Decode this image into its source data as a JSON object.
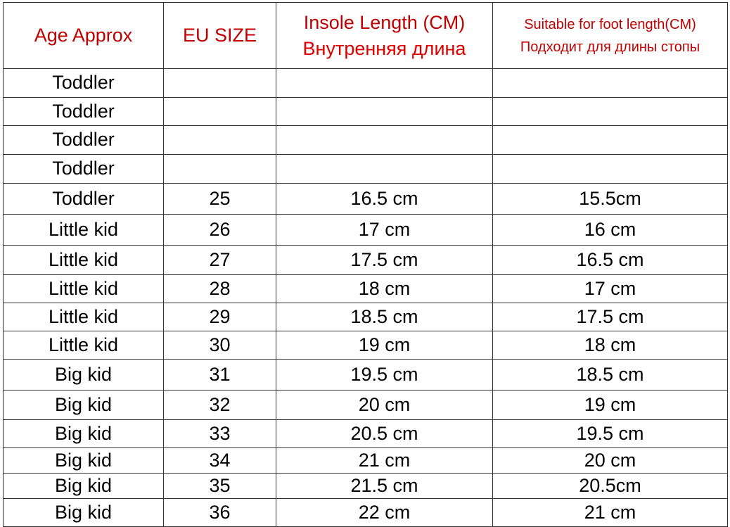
{
  "header": {
    "age": "Age Approx",
    "eu_size": "EU SIZE",
    "insole_en": "Insole Length (CM)",
    "insole_ru": "Внутренняя длина",
    "foot_en": "Suitable for foot length(CM)",
    "foot_ru": "Подходит для длины стопы"
  },
  "colors": {
    "header_text": "#c00000",
    "header_text_ru": "#e00000",
    "body_text": "#000000",
    "border": "#333333"
  },
  "rows": [
    {
      "age": "Toddler",
      "eu": "",
      "insole": "",
      "foot": ""
    },
    {
      "age": "Toddler",
      "eu": "",
      "insole": "",
      "foot": ""
    },
    {
      "age": "Toddler",
      "eu": "",
      "insole": "",
      "foot": ""
    },
    {
      "age": "Toddler",
      "eu": "",
      "insole": "",
      "foot": ""
    },
    {
      "age": "Toddler",
      "eu": "25",
      "insole": "16.5 cm",
      "foot": "15.5cm"
    },
    {
      "age": "Little kid",
      "eu": "26",
      "insole": "17 cm",
      "foot": "16 cm"
    },
    {
      "age": "Little kid",
      "eu": "27",
      "insole": "17.5 cm",
      "foot": "16.5 cm"
    },
    {
      "age": "Little kid",
      "eu": "28",
      "insole": "18 cm",
      "foot": "17 cm"
    },
    {
      "age": "Little kid",
      "eu": "29",
      "insole": "18.5 cm",
      "foot": "17.5 cm"
    },
    {
      "age": "Little kid",
      "eu": "30",
      "insole": "19 cm",
      "foot": "18 cm"
    },
    {
      "age": "Big kid",
      "eu": "31",
      "insole": "19.5 cm",
      "foot": "18.5 cm"
    },
    {
      "age": "Big kid",
      "eu": "32",
      "insole": "20 cm",
      "foot": "19 cm"
    },
    {
      "age": "Big kid",
      "eu": "33",
      "insole": "20.5 cm",
      "foot": "19.5 cm"
    },
    {
      "age": "Big kid",
      "eu": "34",
      "insole": "21 cm",
      "foot": "20 cm"
    },
    {
      "age": "Big kid",
      "eu": "35",
      "insole": "21.5 cm",
      "foot": "20.5cm"
    },
    {
      "age": "Big kid",
      "eu": "36",
      "insole": "22 cm",
      "foot": "21 cm"
    }
  ]
}
